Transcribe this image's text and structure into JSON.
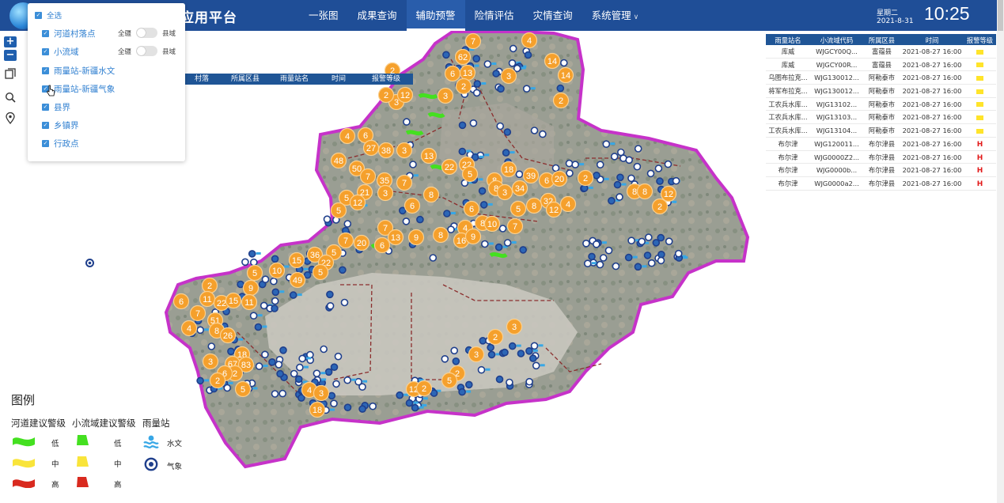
{
  "header": {
    "app_title": "应用平台",
    "nav": [
      {
        "label": "一张图",
        "active": false
      },
      {
        "label": "成果查询",
        "active": false
      },
      {
        "label": "辅助预警",
        "active": true
      },
      {
        "label": "险情评估",
        "active": false
      },
      {
        "label": "灾情查询",
        "active": false
      },
      {
        "label": "系统管理",
        "active": false,
        "dropdown": true
      }
    ],
    "weekday": "星期二",
    "date": "2021-8-31",
    "time": "10:25"
  },
  "tools": {
    "zoom_in": "+",
    "zoom_out": "−"
  },
  "layer_panel": {
    "select_all": "全选",
    "layers": [
      {
        "label": "河道村落点",
        "checked": true,
        "toggle": true,
        "left": "全疆",
        "right": "县域"
      },
      {
        "label": "小流域",
        "checked": true,
        "toggle": true,
        "left": "全疆",
        "right": "县域"
      },
      {
        "label": "雨量站-新疆水文",
        "checked": true
      },
      {
        "label": "雨量站-新疆气象",
        "checked": true
      },
      {
        "label": "县界",
        "checked": true
      },
      {
        "label": "乡镇界",
        "checked": true
      },
      {
        "label": "行政点",
        "checked": true
      }
    ]
  },
  "left_table": {
    "columns": [
      "村落",
      "所属区县",
      "雨量站名",
      "时间",
      "报警等级"
    ]
  },
  "right_table": {
    "columns": [
      "雨量站名",
      "小流域代码",
      "所属区县",
      "时间",
      "报警等级"
    ],
    "rows": [
      {
        "station": "库威",
        "code": "WJGCY00Q...",
        "county": "富蕴县",
        "time": "2021-08-27 16:00",
        "level": "Y"
      },
      {
        "station": "库威",
        "code": "WJGCY00R...",
        "county": "富蕴县",
        "time": "2021-08-27 16:00",
        "level": "Y"
      },
      {
        "station": "乌图布拉克...",
        "code": "WJG130012...",
        "county": "阿勒泰市",
        "time": "2021-08-27 16:00",
        "level": "Y"
      },
      {
        "station": "将军布拉克...",
        "code": "WJG130012...",
        "county": "阿勒泰市",
        "time": "2021-08-27 16:00",
        "level": "Y"
      },
      {
        "station": "工农兵水库...",
        "code": "WJG13102...",
        "county": "阿勒泰市",
        "time": "2021-08-27 16:00",
        "level": "Y"
      },
      {
        "station": "工农兵水库...",
        "code": "WJG13103...",
        "county": "阿勒泰市",
        "time": "2021-08-27 16:00",
        "level": "Y"
      },
      {
        "station": "工农兵水库...",
        "code": "WJG13104...",
        "county": "阿勒泰市",
        "time": "2021-08-27 16:00",
        "level": "Y"
      },
      {
        "station": "布尔津",
        "code": "WJG120011...",
        "county": "布尔津县",
        "time": "2021-08-27 16:00",
        "level": "H"
      },
      {
        "station": "布尔津",
        "code": "WJG0000Z2...",
        "county": "布尔津县",
        "time": "2021-08-27 16:00",
        "level": "H"
      },
      {
        "station": "布尔津",
        "code": "WJG0000b...",
        "county": "布尔津县",
        "time": "2021-08-27 16:00",
        "level": "H"
      },
      {
        "station": "布尔津",
        "code": "WJG0000a2...",
        "county": "布尔津县",
        "time": "2021-08-27 16:00",
        "level": "H"
      }
    ]
  },
  "map": {
    "clusters": [
      {
        "n": "7"
      },
      {
        "n": "4"
      },
      {
        "n": "62"
      },
      {
        "n": "14"
      },
      {
        "n": "6"
      },
      {
        "n": "13"
      },
      {
        "n": "3"
      },
      {
        "n": "14"
      },
      {
        "n": "2"
      },
      {
        "n": "3"
      },
      {
        "n": "2"
      },
      {
        "n": "12"
      },
      {
        "n": "3"
      },
      {
        "n": "2"
      },
      {
        "n": "2"
      },
      {
        "n": "4"
      },
      {
        "n": "6"
      },
      {
        "n": "27"
      },
      {
        "n": "38"
      },
      {
        "n": "3"
      },
      {
        "n": "13"
      },
      {
        "n": "22"
      },
      {
        "n": "22"
      },
      {
        "n": "5"
      },
      {
        "n": "48"
      },
      {
        "n": "50"
      },
      {
        "n": "7"
      },
      {
        "n": "35"
      },
      {
        "n": "7"
      },
      {
        "n": "18"
      },
      {
        "n": "8"
      },
      {
        "n": "39"
      },
      {
        "n": "6"
      },
      {
        "n": "20"
      },
      {
        "n": "2"
      },
      {
        "n": "8"
      },
      {
        "n": "3"
      },
      {
        "n": "34"
      },
      {
        "n": "21"
      },
      {
        "n": "3"
      },
      {
        "n": "8"
      },
      {
        "n": "5"
      },
      {
        "n": "12"
      },
      {
        "n": "6"
      },
      {
        "n": "6"
      },
      {
        "n": "5"
      },
      {
        "n": "8"
      },
      {
        "n": "32"
      },
      {
        "n": "12"
      },
      {
        "n": "4"
      },
      {
        "n": "8"
      },
      {
        "n": "8"
      },
      {
        "n": "12"
      },
      {
        "n": "2"
      },
      {
        "n": "5"
      },
      {
        "n": "7"
      },
      {
        "n": "4"
      },
      {
        "n": "8"
      },
      {
        "n": "10"
      },
      {
        "n": "7"
      },
      {
        "n": "7"
      },
      {
        "n": "20"
      },
      {
        "n": "13"
      },
      {
        "n": "9"
      },
      {
        "n": "8"
      },
      {
        "n": "16"
      },
      {
        "n": "9"
      },
      {
        "n": "6"
      },
      {
        "n": "5"
      },
      {
        "n": "15"
      },
      {
        "n": "36"
      },
      {
        "n": "22"
      },
      {
        "n": "5"
      },
      {
        "n": "10"
      },
      {
        "n": "5"
      },
      {
        "n": "49"
      },
      {
        "n": "2"
      },
      {
        "n": "9"
      },
      {
        "n": "6"
      },
      {
        "n": "11"
      },
      {
        "n": "22"
      },
      {
        "n": "15"
      },
      {
        "n": "11"
      },
      {
        "n": "7"
      },
      {
        "n": "4"
      },
      {
        "n": "51"
      },
      {
        "n": "8"
      },
      {
        "n": "26"
      },
      {
        "n": "18"
      },
      {
        "n": "67"
      },
      {
        "n": "83"
      },
      {
        "n": "3"
      },
      {
        "n": "2"
      },
      {
        "n": "6"
      },
      {
        "n": "2"
      },
      {
        "n": "5"
      },
      {
        "n": "3"
      },
      {
        "n": "2"
      },
      {
        "n": "3"
      },
      {
        "n": "2"
      },
      {
        "n": "5"
      },
      {
        "n": "12"
      },
      {
        "n": "2"
      },
      {
        "n": "4"
      },
      {
        "n": "3"
      },
      {
        "n": "18"
      },
      {
        "n": "13"
      }
    ]
  },
  "legend": {
    "title": "图例",
    "river_head": "河道建议警级",
    "basin_head": "小流域建议警级",
    "station_head": "雨量站",
    "low": "低",
    "mid": "中",
    "high": "高",
    "hydro": "水文",
    "meteo": "气象"
  },
  "colors": {
    "header_bg": "#1f4e97",
    "cluster": "#f5a02c",
    "warn_low": "#44e020",
    "warn_mid": "#f9e43a",
    "warn_high": "#d92a1f",
    "boundary": "#c632c9"
  }
}
